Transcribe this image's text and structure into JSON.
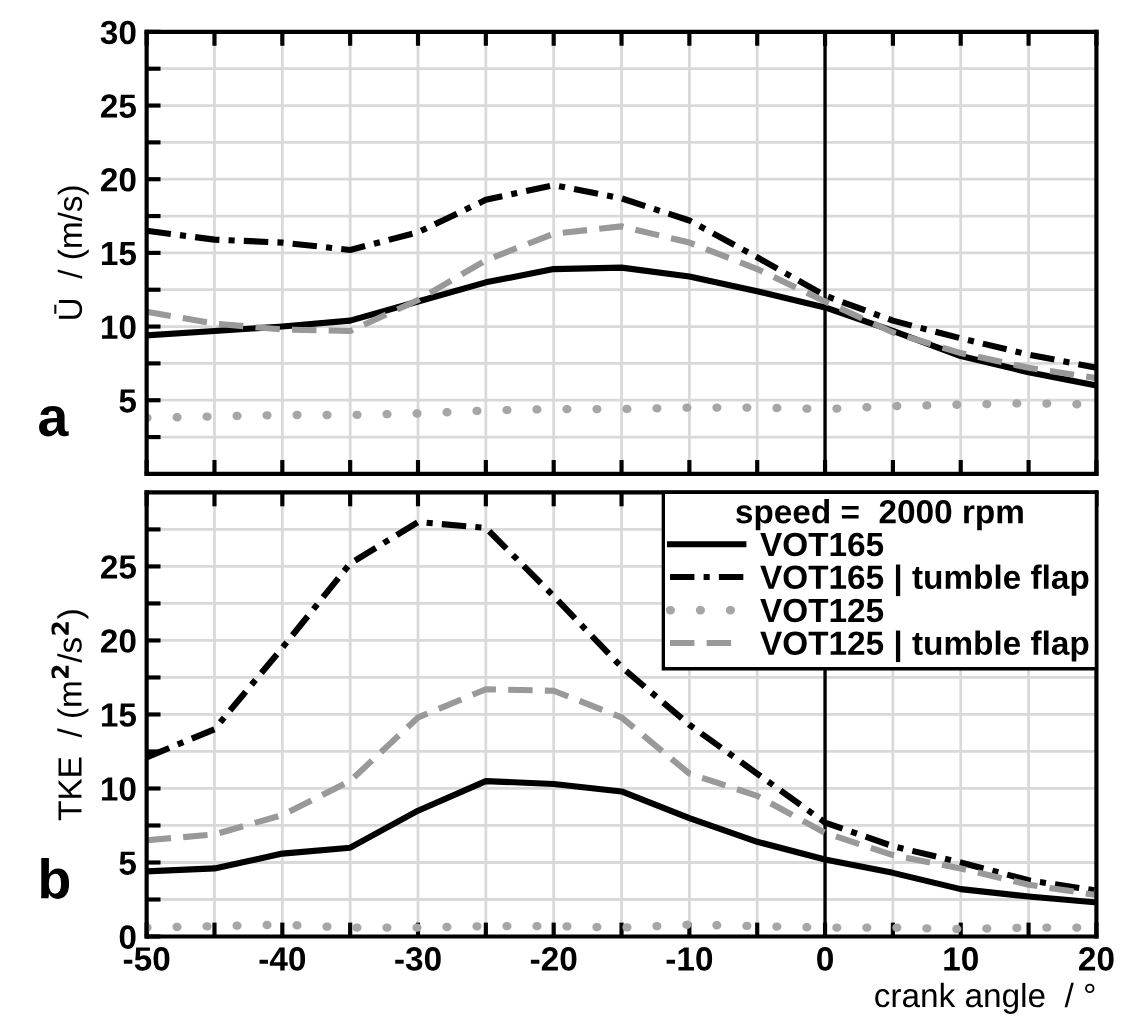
{
  "chart_data": [
    {
      "type": "line",
      "ylabel": "Ū  / (m/s)",
      "annotations": [
        "a"
      ],
      "x": [
        -50,
        -45,
        -40,
        -35,
        -30,
        -25,
        -20,
        -15,
        -10,
        -5,
        0,
        5,
        10,
        15,
        20
      ],
      "xlim": [
        -50,
        20
      ],
      "xticks": [
        {
          "value": -50,
          "label": null
        },
        {
          "value": -45,
          "label": null
        },
        {
          "value": -40,
          "label": null
        },
        {
          "value": -35,
          "label": null
        },
        {
          "value": -30,
          "label": null
        },
        {
          "value": -25,
          "label": null
        },
        {
          "value": -20,
          "label": null
        },
        {
          "value": -15,
          "label": null
        },
        {
          "value": -10,
          "label": null
        },
        {
          "value": -5,
          "label": null
        },
        {
          "value": 0,
          "label": null
        },
        {
          "value": 5,
          "label": null
        },
        {
          "value": 10,
          "label": null
        },
        {
          "value": 15,
          "label": null
        },
        {
          "value": 20,
          "label": null
        }
      ],
      "ylim": [
        0,
        30
      ],
      "yticks": [
        {
          "value": 2.5,
          "label": null
        },
        5,
        {
          "value": 7.5,
          "label": null
        },
        10,
        {
          "value": 12.5,
          "label": null
        },
        15,
        {
          "value": 17.5,
          "label": null
        },
        20,
        {
          "value": 22.5,
          "label": null
        },
        25,
        {
          "value": 27.5,
          "label": null
        },
        30
      ],
      "tick_labels": "y",
      "grid": true,
      "legend": false,
      "ref_lines": [
        {
          "axis": "x",
          "value": 0,
          "color": "#000000"
        }
      ],
      "series": [
        {
          "color": "#000000",
          "line_style": "solid",
          "values": [
            9.4,
            9.7,
            10.0,
            10.4,
            11.7,
            13.0,
            13.9,
            14.0,
            13.4,
            12.4,
            11.3,
            9.7,
            8.0,
            6.9,
            6.0
          ]
        },
        {
          "color": "#000000",
          "line_style": "dashdot",
          "values": [
            16.5,
            15.9,
            15.7,
            15.2,
            16.4,
            18.6,
            19.6,
            18.7,
            17.2,
            14.7,
            12.1,
            10.4,
            9.2,
            8.1,
            7.2
          ]
        },
        {
          "color": "#a6a6a6",
          "line_style": "dotted",
          "values": [
            3.8,
            3.9,
            4.0,
            4.0,
            4.1,
            4.3,
            4.4,
            4.4,
            4.5,
            4.5,
            4.4,
            4.6,
            4.7,
            4.8,
            4.7
          ]
        },
        {
          "color": "#999999",
          "line_style": "dashed",
          "values": [
            11.0,
            10.2,
            9.8,
            9.7,
            11.8,
            14.5,
            16.3,
            16.8,
            15.7,
            13.9,
            11.7,
            9.6,
            8.2,
            7.2,
            6.5
          ]
        }
      ]
    },
    {
      "type": "line",
      "ylabel": "TKE  / (m$^{2}$/s$^{2}$)",
      "xlabel": "crank angle  / °",
      "annotations": [
        "b"
      ],
      "legend_title": "speed =  2000 rpm",
      "x": [
        -50,
        -45,
        -40,
        -35,
        -30,
        -25,
        -20,
        -15,
        -10,
        -5,
        0,
        5,
        10,
        15,
        20
      ],
      "xlim": [
        -50,
        20
      ],
      "xticks": [
        -50,
        {
          "value": -45,
          "label": null
        },
        -40,
        {
          "value": -35,
          "label": null
        },
        -30,
        {
          "value": -25,
          "label": null
        },
        -20,
        {
          "value": -15,
          "label": null
        },
        -10,
        {
          "value": -5,
          "label": null
        },
        0,
        {
          "value": 5,
          "label": null
        },
        10,
        {
          "value": 15,
          "label": null
        },
        20
      ],
      "ylim": [
        0,
        30
      ],
      "yticks": [
        0,
        {
          "value": 2.5,
          "label": null
        },
        5,
        {
          "value": 7.5,
          "label": null
        },
        10,
        {
          "value": 12.5,
          "label": null
        },
        15,
        {
          "value": 17.5,
          "label": null
        },
        20,
        {
          "value": 22.5,
          "label": null
        },
        25,
        {
          "value": 27.5,
          "label": null
        }
      ],
      "grid": true,
      "legend": "top right",
      "ref_lines": [
        {
          "axis": "x",
          "value": 0,
          "color": "#000000"
        }
      ],
      "series": [
        {
          "name": "VOT165",
          "color": "#000000",
          "line_style": "solid",
          "values": [
            4.4,
            4.6,
            5.6,
            6.0,
            8.5,
            10.5,
            10.3,
            9.8,
            8.0,
            6.4,
            5.2,
            4.3,
            3.2,
            2.7,
            2.3
          ]
        },
        {
          "name": "VOT165 | tumble flap",
          "color": "#000000",
          "line_style": "dashdot",
          "values": [
            12.1,
            14.0,
            19.5,
            25.2,
            28.0,
            27.6,
            23.0,
            18.2,
            14.3,
            11.0,
            7.7,
            6.1,
            5.0,
            3.8,
            3.1
          ]
        },
        {
          "name": "VOT125",
          "color": "#a6a6a6",
          "line_style": "dotted",
          "values": [
            0.6,
            0.7,
            0.8,
            0.6,
            0.6,
            0.7,
            0.7,
            0.6,
            0.8,
            0.7,
            0.6,
            0.6,
            0.5,
            0.6,
            0.6
          ]
        },
        {
          "name": "VOT125 | tumble flap",
          "color": "#999999",
          "line_style": "dashed",
          "values": [
            6.5,
            6.9,
            8.2,
            10.5,
            14.8,
            16.7,
            16.6,
            14.8,
            11.0,
            9.5,
            7.0,
            5.5,
            4.6,
            3.5,
            2.8
          ]
        }
      ]
    }
  ]
}
